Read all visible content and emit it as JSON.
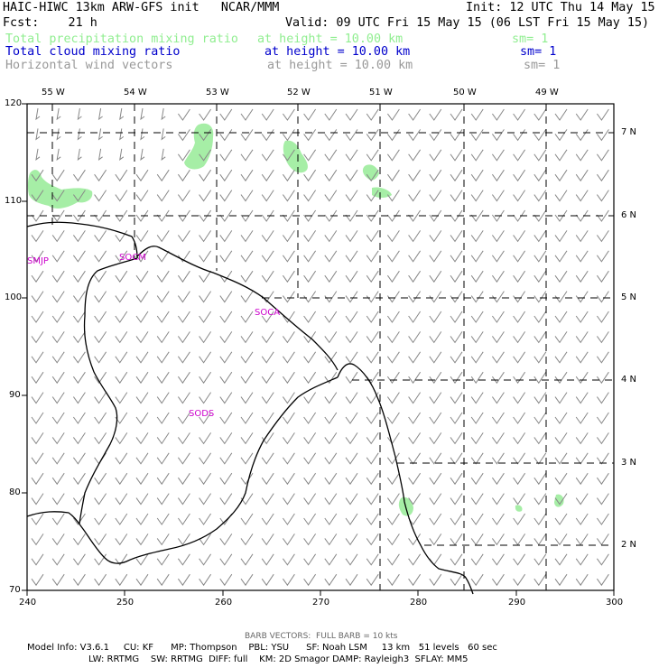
{
  "header": {
    "model_line": "HAIC-HIWC 13km ARW-GFS init   NCAR/MMM",
    "init": "Init: 12 UTC Thu 14 May 15",
    "fcst": "Fcst:    21 h",
    "valid": "Valid: 09 UTC Fri 15 May 15 (06 LST Fri 15 May 15)"
  },
  "fields": [
    {
      "name": "Total precipitation mixing ratio",
      "height": "at height = 10.00 km",
      "sm": "sm= 1",
      "color": "#90ee90"
    },
    {
      "name": "Total cloud mixing ratio",
      "height": "at height = 10.00 km",
      "sm": "sm= 1",
      "color": "#0000cc"
    },
    {
      "name": "Horizontal wind vectors",
      "height": "at height = 10.00 km",
      "sm": "sm= 1",
      "color": "#999999"
    }
  ],
  "map": {
    "x_ticks": [
      "240",
      "250",
      "260",
      "270",
      "280",
      "290",
      "300"
    ],
    "y_ticks": [
      "70",
      "80",
      "90",
      "100",
      "110",
      "120"
    ],
    "lon_labels": [
      "55 W",
      "54 W",
      "53 W",
      "52 W",
      "51 W",
      "50 W",
      "49 W"
    ],
    "lat_labels": [
      "2 N",
      "3 N",
      "4 N",
      "5 N",
      "6 N",
      "7 N"
    ],
    "stations": [
      "SMJP",
      "SOCM",
      "SOCA",
      "SODS"
    ],
    "station_color": "#cc00cc"
  },
  "footer": {
    "barb_note": "BARB VECTORS:  FULL BARB = 10 kts",
    "model_info_1": "Model Info: V3.6.1     CU: KF      MP: Thompson    PBL: YSU      SF: Noah LSM     13 km   51 levels   60 sec",
    "model_info_2": "LW: RRTMG    SW: RRTMG  DIFF: full    KM: 2D Smagor DAMP: Rayleigh3  SFLAY: MM5"
  }
}
